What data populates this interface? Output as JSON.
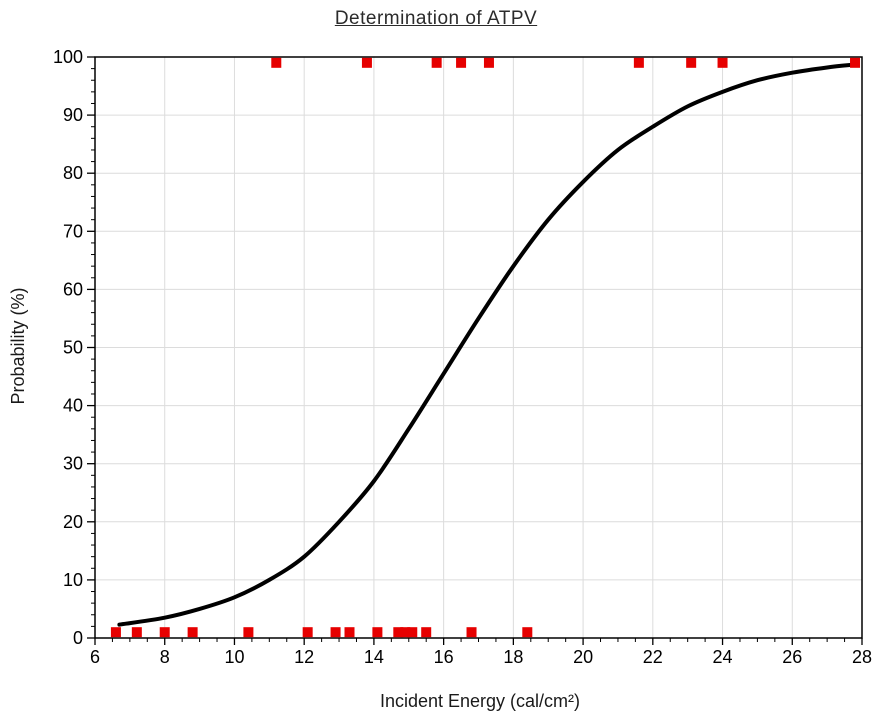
{
  "chart_data": {
    "type": "scatter",
    "title": "Determination of ATPV",
    "xlabel": "Incident Energy (cal/cm²)",
    "ylabel": "Probability (%)",
    "xlim": [
      6,
      28
    ],
    "ylim": [
      0,
      100
    ],
    "x_ticks": [
      6,
      8,
      10,
      12,
      14,
      16,
      18,
      20,
      22,
      24,
      26,
      28
    ],
    "y_ticks": [
      0,
      10,
      20,
      30,
      40,
      50,
      60,
      70,
      80,
      90,
      100
    ],
    "grid": true,
    "marker_color": "#e60000",
    "curve_color": "#000000",
    "series": [
      {
        "kind": "points",
        "points": [
          {
            "x": 6.6,
            "y": 1
          },
          {
            "x": 7.2,
            "y": 1
          },
          {
            "x": 8.0,
            "y": 1
          },
          {
            "x": 8.8,
            "y": 1
          },
          {
            "x": 10.4,
            "y": 1
          },
          {
            "x": 12.1,
            "y": 1
          },
          {
            "x": 12.9,
            "y": 1
          },
          {
            "x": 13.3,
            "y": 1
          },
          {
            "x": 14.1,
            "y": 1
          },
          {
            "x": 14.7,
            "y": 1
          },
          {
            "x": 14.9,
            "y": 1
          },
          {
            "x": 15.1,
            "y": 1
          },
          {
            "x": 15.5,
            "y": 1
          },
          {
            "x": 16.8,
            "y": 1
          },
          {
            "x": 18.4,
            "y": 1
          },
          {
            "x": 11.2,
            "y": 99
          },
          {
            "x": 13.8,
            "y": 99
          },
          {
            "x": 15.8,
            "y": 99
          },
          {
            "x": 16.5,
            "y": 99
          },
          {
            "x": 17.3,
            "y": 99
          },
          {
            "x": 21.6,
            "y": 99
          },
          {
            "x": 23.1,
            "y": 99
          },
          {
            "x": 24.0,
            "y": 99
          },
          {
            "x": 27.8,
            "y": 99
          }
        ]
      },
      {
        "kind": "curve",
        "points": [
          {
            "x": 6.7,
            "y": 2.3
          },
          {
            "x": 8,
            "y": 3.5
          },
          {
            "x": 9,
            "y": 5
          },
          {
            "x": 10,
            "y": 7
          },
          {
            "x": 11,
            "y": 10
          },
          {
            "x": 12,
            "y": 14
          },
          {
            "x": 13,
            "y": 20
          },
          {
            "x": 14,
            "y": 27
          },
          {
            "x": 15,
            "y": 36
          },
          {
            "x": 16,
            "y": 45.5
          },
          {
            "x": 17,
            "y": 55
          },
          {
            "x": 18,
            "y": 64
          },
          {
            "x": 19,
            "y": 72
          },
          {
            "x": 20,
            "y": 78.5
          },
          {
            "x": 21,
            "y": 84
          },
          {
            "x": 22,
            "y": 88
          },
          {
            "x": 23,
            "y": 91.5
          },
          {
            "x": 24,
            "y": 94
          },
          {
            "x": 25,
            "y": 96
          },
          {
            "x": 26,
            "y": 97.3
          },
          {
            "x": 27,
            "y": 98.2
          },
          {
            "x": 27.8,
            "y": 98.7
          }
        ]
      }
    ]
  }
}
